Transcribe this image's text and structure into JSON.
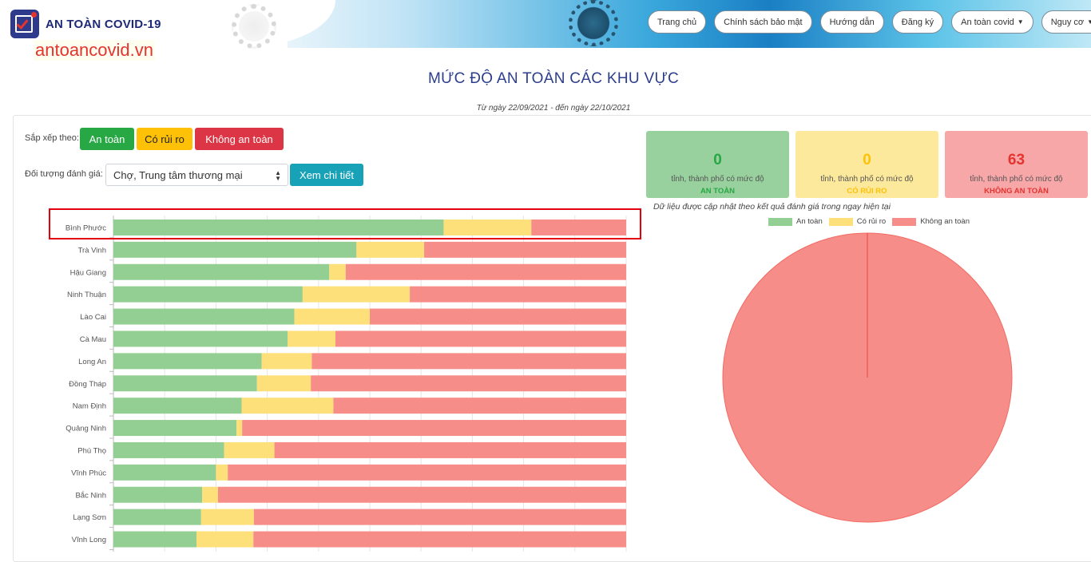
{
  "header": {
    "brand": "AN TOÀN COVID-19",
    "domain": "antoancovid.vn",
    "nav": [
      {
        "label": "Trang chủ",
        "caret": false
      },
      {
        "label": "Chính sách bảo mật",
        "caret": false
      },
      {
        "label": "Hướng dẫn",
        "caret": false
      },
      {
        "label": "Đăng ký",
        "caret": false
      },
      {
        "label": "An toàn covid",
        "caret": true
      },
      {
        "label": "Nguy cơ",
        "caret": true
      }
    ]
  },
  "page": {
    "title": "MỨC ĐỘ AN TOÀN CÁC KHU VỰC",
    "date_range": "Từ ngày 22/09/2021 - đến ngày 22/10/2021"
  },
  "filters": {
    "sort_label": "Sắp xếp theo:",
    "sort_safe": "An toàn",
    "sort_risk": "Có rủi ro",
    "sort_unsafe": "Không an toàn",
    "object_label": "Đối tượng đánh giá:",
    "object_value": "Chợ, Trung tâm thương mại",
    "detail_button": "Xem chi tiết"
  },
  "stats": {
    "safe_count": "0",
    "risk_count": "0",
    "unsafe_count": "63",
    "desc": "tỉnh, thành phố có mức độ",
    "safe_label": "AN TOÀN",
    "risk_label": "CÓ RỦI RO",
    "unsafe_label": "KHÔNG AN TOÀN"
  },
  "note": "Dữ liệu được cập nhật theo kết quả đánh giá trong ngay hiện tại",
  "colors": {
    "safe": "#93cf93",
    "risk": "#fde07a",
    "unsafe": "#f78d89"
  },
  "chart_data": [
    {
      "type": "bar",
      "orientation": "horizontal",
      "stacked": true,
      "normalized": true,
      "categories": [
        "Bình Phước",
        "Trà Vinh",
        "Hậu Giang",
        "Ninh Thuận",
        "Lào Cai",
        "Cà Mau",
        "Long An",
        "Đồng Tháp",
        "Nam Định",
        "Quảng Ninh",
        "Phú Thọ",
        "Vĩnh Phúc",
        "Bắc Ninh",
        "Lạng Sơn",
        "Vĩnh Long"
      ],
      "series": [
        {
          "name": "An toàn",
          "values": [
            64.4,
            47.4,
            42.1,
            36.9,
            35.3,
            34.0,
            28.9,
            28.0,
            25.0,
            24.0,
            21.6,
            20.0,
            17.3,
            17.1,
            16.2
          ]
        },
        {
          "name": "Có rủi ro",
          "values": [
            17.1,
            13.2,
            3.2,
            20.9,
            14.7,
            9.3,
            9.8,
            10.5,
            17.9,
            1.1,
            9.8,
            2.3,
            3.1,
            10.3,
            11.1
          ]
        },
        {
          "name": "Không an toàn",
          "values": [
            18.5,
            39.4,
            54.7,
            42.2,
            50.0,
            56.7,
            61.3,
            61.5,
            57.1,
            74.9,
            68.6,
            77.7,
            79.6,
            72.6,
            72.7
          ]
        }
      ],
      "xlim": [
        0,
        100
      ],
      "grid": true
    },
    {
      "type": "pie",
      "labels": [
        "An toàn",
        "Có rủi ro",
        "Không an toàn"
      ],
      "values": [
        0,
        0,
        63
      ],
      "legend": "top"
    }
  ]
}
